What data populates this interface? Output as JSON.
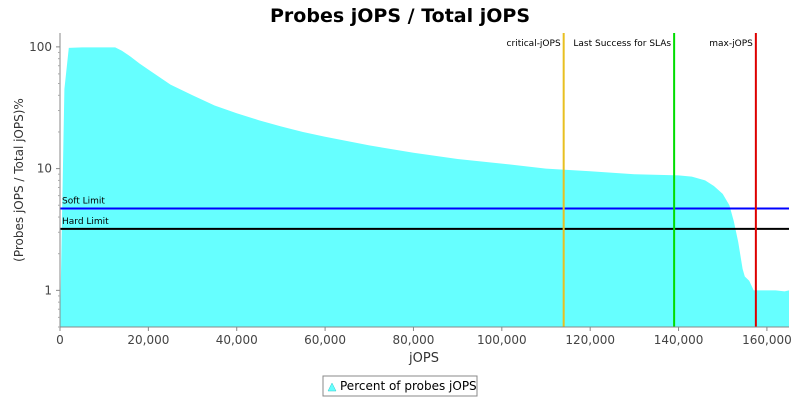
{
  "chart_data": {
    "type": "area",
    "title": "Probes jOPS / Total jOPS",
    "xlabel": "jOPS",
    "ylabel": "(Probes jOPS / Total jOPS)%",
    "y_scale": "log",
    "xlim": [
      0,
      165000
    ],
    "ylim": [
      0.5,
      130
    ],
    "x_ticks": [
      0,
      20000,
      40000,
      60000,
      80000,
      100000,
      120000,
      140000,
      160000
    ],
    "x_tick_labels": [
      "0",
      "20,000",
      "40,000",
      "60,000",
      "80,000",
      "100,000",
      "120,000",
      "140,000",
      "160,000"
    ],
    "y_ticks": [
      1,
      10,
      100
    ],
    "y_tick_labels": [
      "1",
      "10",
      "100"
    ],
    "grid": false,
    "legend_position": "bottom",
    "series": [
      {
        "name": "Percent of probes jOPS",
        "color": "#66ffff",
        "x": [
          0,
          1000,
          2000,
          5000,
          8000,
          11000,
          12500,
          14000,
          16000,
          18000,
          20000,
          25000,
          30000,
          35000,
          40000,
          45000,
          50000,
          55000,
          60000,
          70000,
          80000,
          90000,
          100000,
          110000,
          120000,
          130000,
          140000,
          143000,
          146000,
          148000,
          150000,
          151500,
          152500,
          153500,
          154500,
          155000,
          156000,
          157000,
          158000,
          160000,
          162000,
          164000,
          165000
        ],
        "y": [
          0.5,
          45,
          98,
          99,
          99,
          99,
          99,
          93,
          83,
          73,
          65,
          49,
          40,
          33,
          28.5,
          25,
          22.2,
          20,
          18.3,
          15.5,
          13.5,
          12,
          11,
          10,
          9.5,
          9,
          8.8,
          8.6,
          8,
          7.2,
          6.2,
          5,
          3.7,
          2.5,
          1.5,
          1.3,
          1.2,
          1.0,
          1.0,
          1.0,
          1.0,
          0.98,
          1.0
        ]
      }
    ],
    "horizontal_lines": [
      {
        "label": "Soft Limit",
        "value": 4.7,
        "color": "#0000ff"
      },
      {
        "label": "Hard Limit",
        "value": 3.2,
        "color": "#000000"
      }
    ],
    "vertical_lines": [
      {
        "label": "critical-jOPS",
        "value": 114000,
        "color": "#e8c020"
      },
      {
        "label": "Last Success for SLAs",
        "value": 139000,
        "color": "#00dd00"
      },
      {
        "label": "max-jOPS",
        "value": 157500,
        "color": "#dd0000"
      }
    ]
  }
}
